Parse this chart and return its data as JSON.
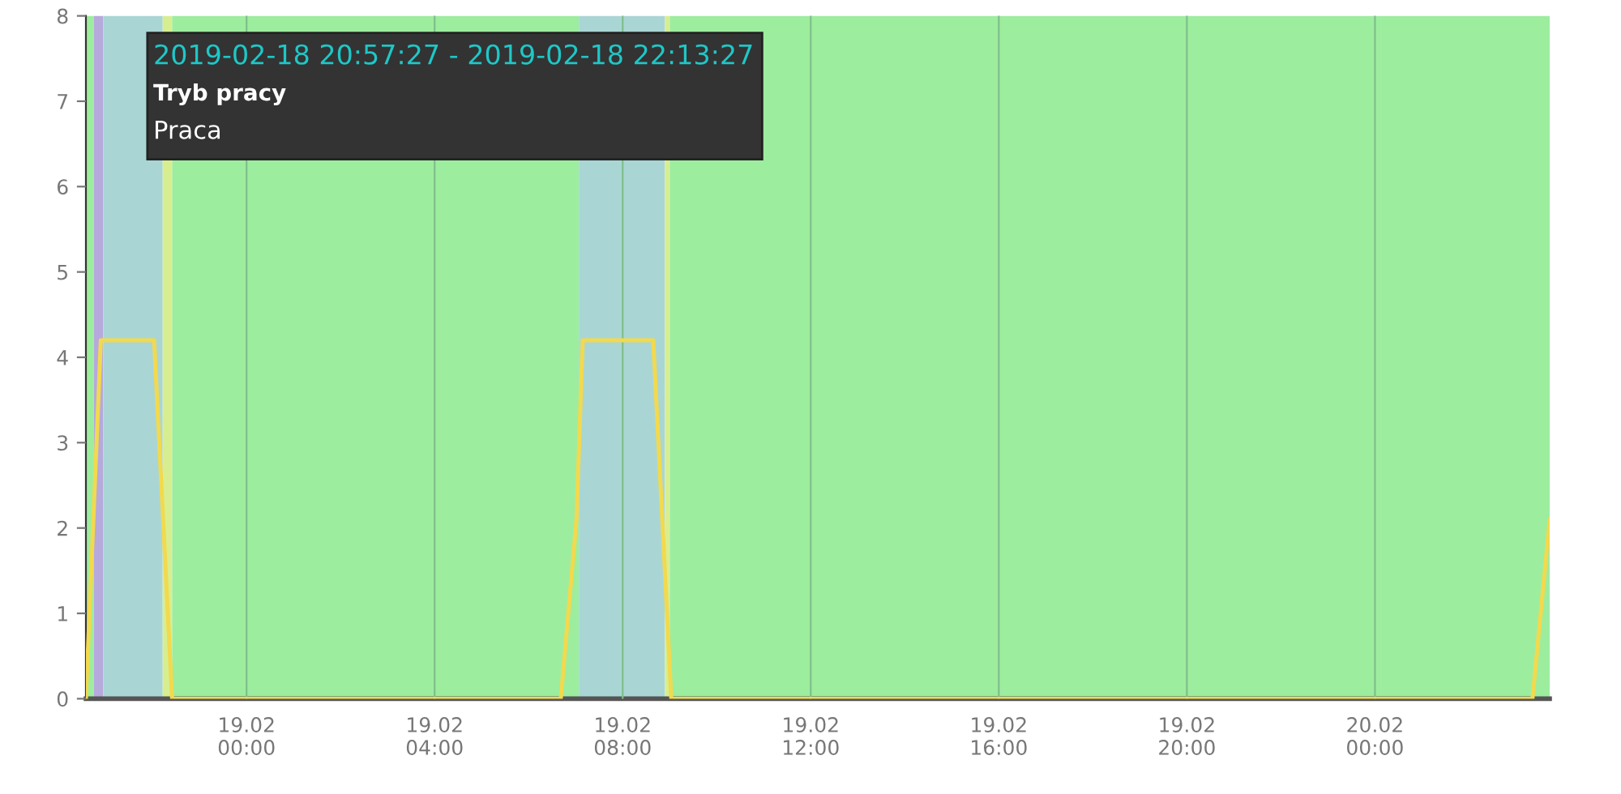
{
  "chart_data": {
    "type": "line",
    "x": [
      "2019-02-18T20:35",
      "2019-02-18T20:54",
      "2019-02-18T22:02",
      "2019-02-18T22:25",
      "2019-02-19T06:41",
      "2019-02-19T07:01",
      "2019-02-19T07:09",
      "2019-02-19T08:39",
      "2019-02-19T09:02",
      "2019-02-20T03:21",
      "2019-02-20T03:43"
    ],
    "series": [
      {
        "color": "#f2d94e",
        "values": [
          0,
          4.2,
          4.2,
          0,
          0,
          2.1,
          4.2,
          4.2,
          0,
          0,
          2.1
        ]
      }
    ],
    "xlim": [
      "2019-02-18T20:35",
      "2019-02-20T03:43"
    ],
    "xticks": [
      {
        "value": "2019-02-19T00:00",
        "label": "19.02\n00:00"
      },
      {
        "value": "2019-02-19T04:00",
        "label": "19.02\n04:00"
      },
      {
        "value": "2019-02-19T08:00",
        "label": "19.02\n08:00"
      },
      {
        "value": "2019-02-19T12:00",
        "label": "19.02\n12:00"
      },
      {
        "value": "2019-02-19T16:00",
        "label": "19.02\n16:00"
      },
      {
        "value": "2019-02-19T20:00",
        "label": "19.02\n20:00"
      },
      {
        "value": "2019-02-20T00:00",
        "label": "20.02\n00:00"
      }
    ],
    "ylim": [
      0,
      8
    ],
    "yticks": [
      0,
      1,
      2,
      3,
      4,
      5,
      6,
      7,
      8
    ],
    "grid": "x",
    "legend": false,
    "marker": "none",
    "line_style": "solid",
    "bands": [
      {
        "axis": "x",
        "from": "2019-02-18T20:35",
        "to": "2019-02-18T20:45",
        "color": "#9ded9f"
      },
      {
        "axis": "x",
        "from": "2019-02-18T20:45",
        "to": "2019-02-18T20:57",
        "color": "#b6a9dc"
      },
      {
        "axis": "x",
        "from": "2019-02-18T20:57",
        "to": "2019-02-18T22:13",
        "color": "#a9d6d4"
      },
      {
        "axis": "x",
        "from": "2019-02-18T22:13",
        "to": "2019-02-18T22:25",
        "color": "#d7ee90"
      },
      {
        "axis": "x",
        "from": "2019-02-18T22:25",
        "to": "2019-02-19T07:04",
        "color": "#9ded9f"
      },
      {
        "axis": "x",
        "from": "2019-02-19T07:04",
        "to": "2019-02-19T08:54",
        "color": "#a9d6d4"
      },
      {
        "axis": "x",
        "from": "2019-02-19T08:54",
        "to": "2019-02-19T09:00",
        "color": "#d7ee90"
      },
      {
        "axis": "x",
        "from": "2019-02-19T09:00",
        "to": "2019-02-20T03:43",
        "color": "#9ded9f"
      }
    ],
    "annotations": [
      "2019-02-18 20:57:27 - 2019-02-18 22:13:27",
      "Tryb pracy",
      "Praca"
    ]
  }
}
